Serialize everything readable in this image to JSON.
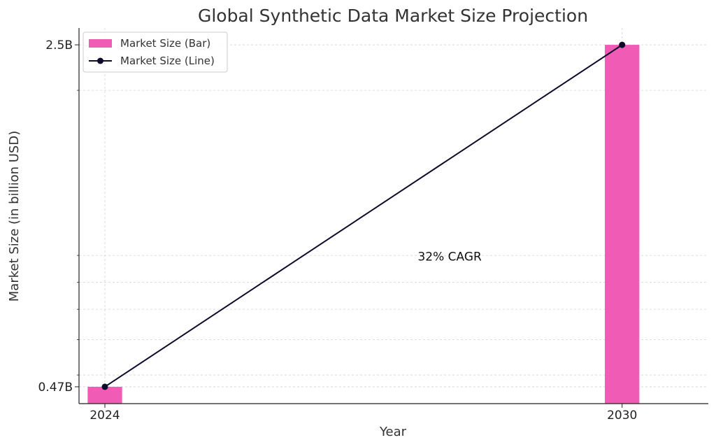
{
  "colors": {
    "bar": "#f05cb5",
    "line": "#0d0b2a",
    "grid": "#d3d3d3",
    "axis": "#222222"
  },
  "chart_data": {
    "type": "bar",
    "title": "Global Synthetic Data Market Size Projection",
    "xlabel": "Year",
    "ylabel": "Market Size (in billion USD)",
    "categories": [
      "2024",
      "2030"
    ],
    "series": [
      {
        "name": "Market Size (Bar)",
        "type": "bar",
        "values": [
          0.47,
          2.5
        ]
      },
      {
        "name": "Market Size (Line)",
        "type": "line",
        "values": [
          0.47,
          2.5
        ]
      }
    ],
    "xlim": [
      2023.7,
      2031.0
    ],
    "ylim": [
      0.37,
      2.6
    ],
    "y_ticks": [
      {
        "value": 0.47,
        "label": "0.47B"
      },
      {
        "value": 2.5,
        "label": "2.5B"
      }
    ],
    "y_minor_ticks": [
      2.23,
      1.25,
      1.09,
      0.93,
      0.75,
      0.54
    ],
    "x_minor_ticks": [],
    "grid": true,
    "legend_position": "top-left",
    "annotation": {
      "text": "32% CAGR",
      "x": 2028.0,
      "y": 1.22
    }
  }
}
